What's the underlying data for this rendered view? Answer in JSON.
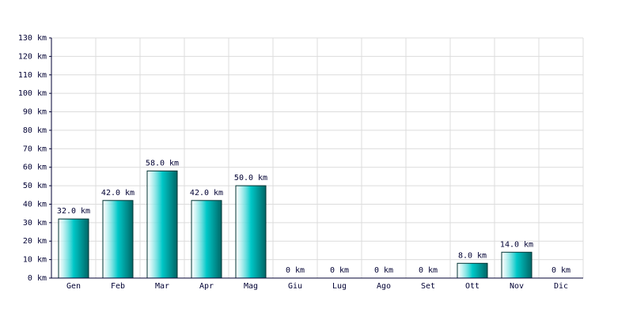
{
  "chart_data": {
    "type": "bar",
    "categories": [
      "Gen",
      "Feb",
      "Mar",
      "Apr",
      "Mag",
      "Giu",
      "Lug",
      "Ago",
      "Set",
      "Ott",
      "Nov",
      "Dic"
    ],
    "values": [
      32,
      42,
      58,
      42,
      50,
      0,
      0,
      0,
      0,
      8,
      14,
      0
    ],
    "value_labels": [
      "32.0 km",
      "42.0 km",
      "58.0 km",
      "42.0 km",
      "50.0 km",
      "0 km",
      "0 km",
      "0 km",
      "0 km",
      "8.0 km",
      "14.0 km",
      "0 km"
    ],
    "color": "#00c8c8",
    "ylim": [
      0,
      130
    ],
    "yticks": [
      {
        "value": 0,
        "label": "0 km"
      },
      {
        "value": 10,
        "label": "10 km"
      },
      {
        "value": 20,
        "label": "20 km"
      },
      {
        "value": 30,
        "label": "30 km"
      },
      {
        "value": 40,
        "label": "40 km"
      },
      {
        "value": 50,
        "label": "50 km"
      },
      {
        "value": 60,
        "label": "60 km"
      },
      {
        "value": 70,
        "label": "70 km"
      },
      {
        "value": 80,
        "label": "80 km"
      },
      {
        "value": 90,
        "label": "90 km"
      },
      {
        "value": 100,
        "label": "100 km"
      },
      {
        "value": 110,
        "label": "110 km"
      },
      {
        "value": 120,
        "label": "120 km"
      },
      {
        "value": 130,
        "label": "130 km"
      }
    ],
    "grid": true
  }
}
